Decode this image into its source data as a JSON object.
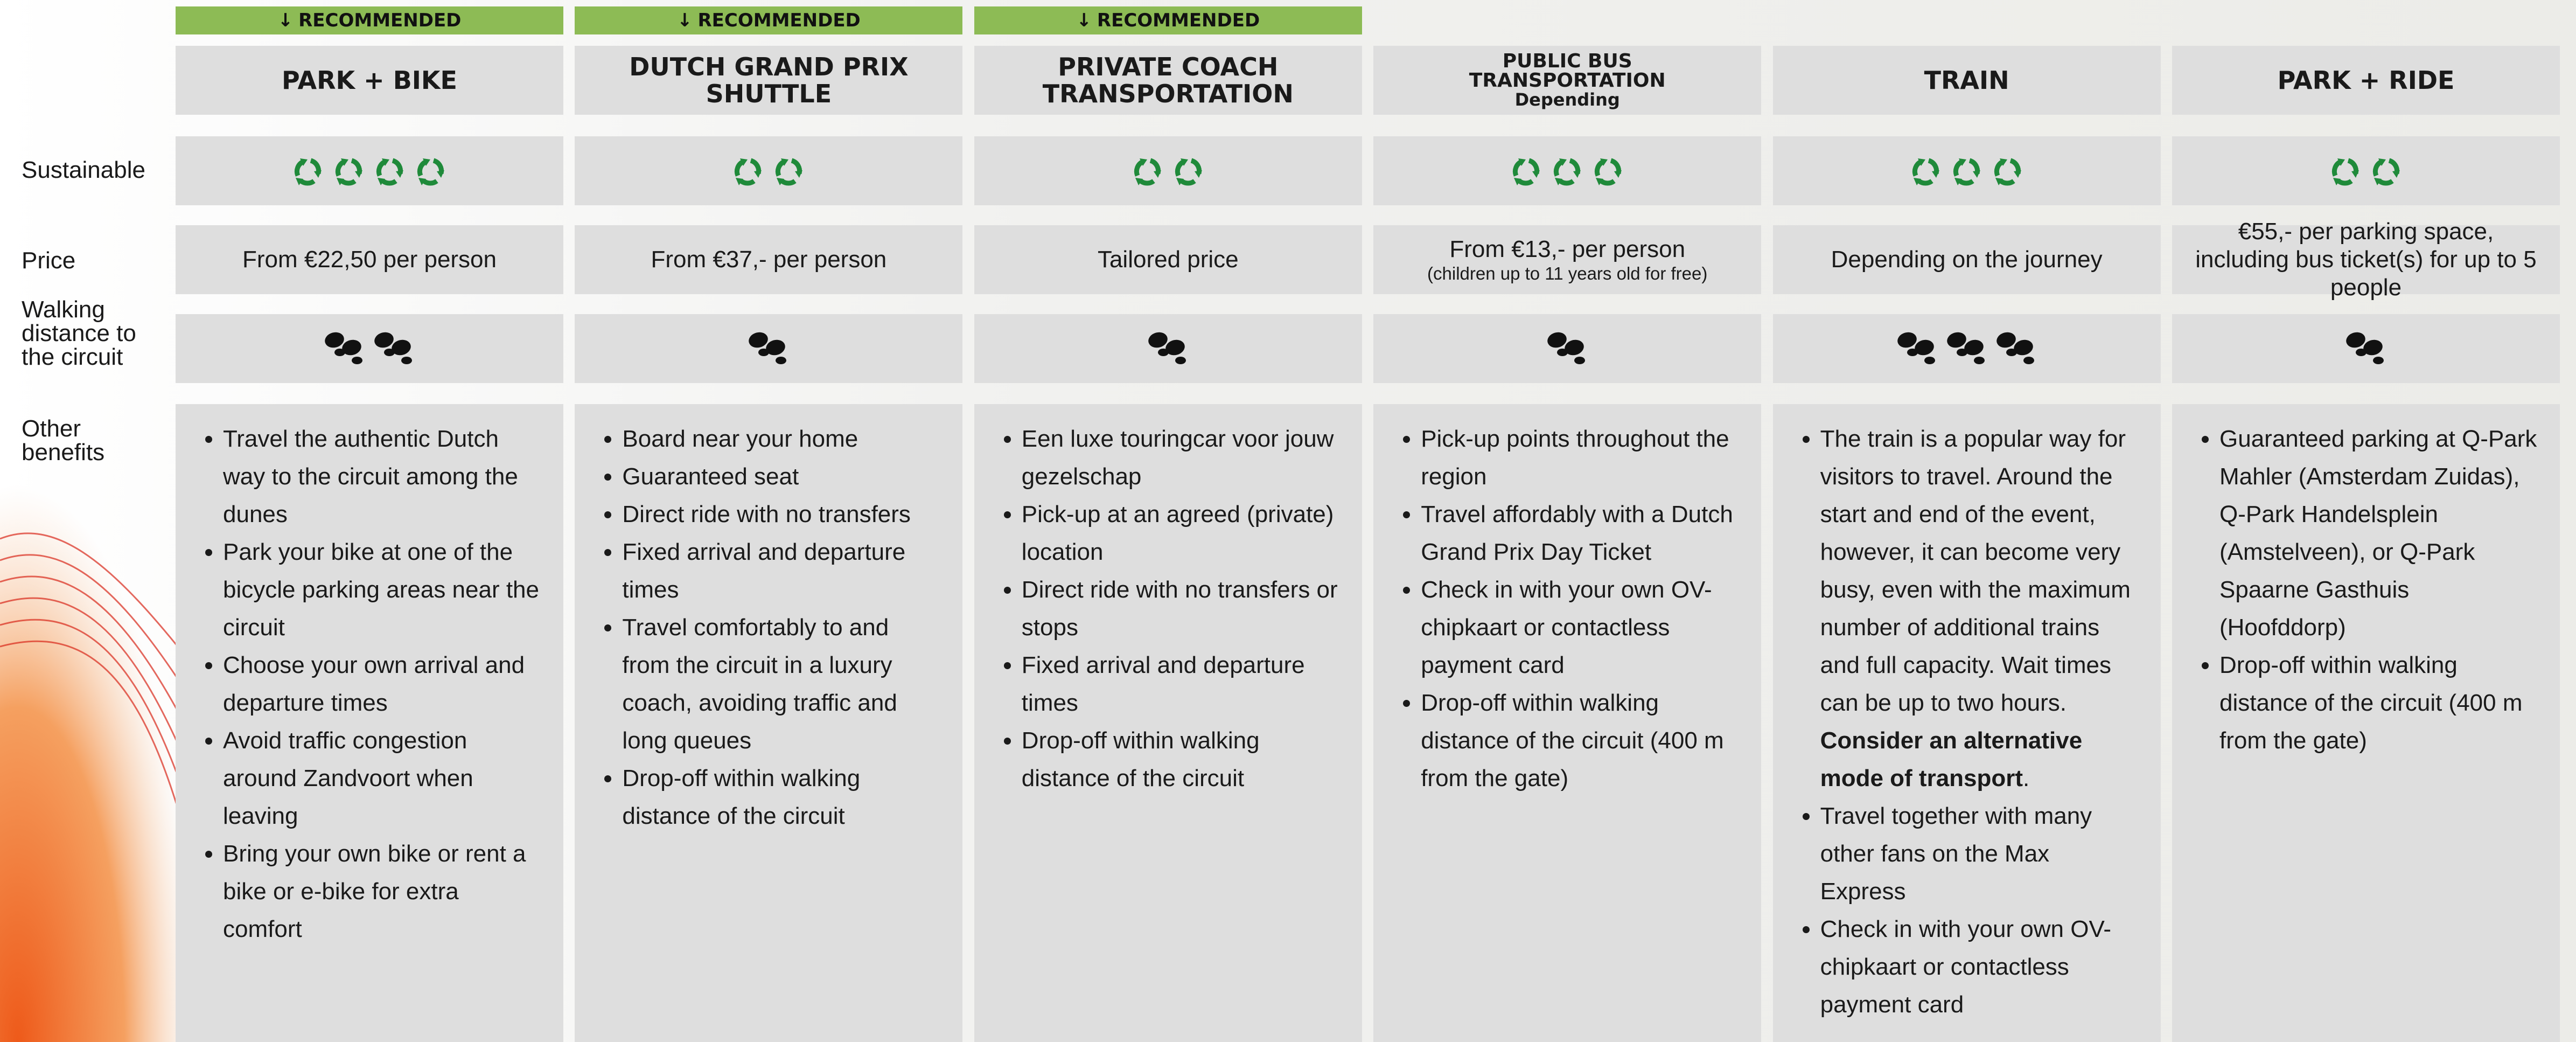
{
  "row_labels": {
    "sustainable": "Sustainable",
    "price": "Price",
    "walking": "Walking distance to the circuit",
    "benefits": "Other benefits"
  },
  "options": [
    {
      "badge": "RECOMMENDED",
      "title": "PARK + BIKE",
      "sustainability": 4,
      "price": "From €22,50 per person",
      "walking": 2,
      "benefits": [
        "Travel the authentic Dutch way to the circuit among the dunes",
        "Park your bike at one of the bicycle parking areas near the circuit",
        "Choose your own arrival and departure times",
        "Avoid traffic congestion around Zandvoort when leaving",
        "Bring your own bike or rent a bike or e-bike for extra comfort"
      ]
    },
    {
      "badge": "RECOMMENDED",
      "title": "DUTCH GRAND PRIX SHUTTLE",
      "sustainability": 2,
      "price": "From €37,- per person",
      "walking": 1,
      "benefits": [
        "Board near your home",
        "Guaranteed seat",
        "Direct ride with no transfers",
        "Fixed arrival and departure times",
        "Travel comfortably to and from the circuit in a luxury coach, avoiding traffic and long queues",
        "Drop-off within walking distance of the circuit"
      ]
    },
    {
      "badge": "RECOMMENDED",
      "title": "PRIVATE COACH TRANSPORTATION",
      "sustainability": 2,
      "price": "Tailored price",
      "walking": 1,
      "benefits": [
        "Een luxe touringcar voor jouw gezelschap",
        "Pick-up at an agreed (private) location",
        "Direct ride with no transfers or stops",
        "Fixed arrival and departure times",
        "Drop-off within walking distance of the circuit"
      ]
    },
    {
      "title": "PUBLIC BUS TRANSPORTATION",
      "title_note": "Depending",
      "sustainability": 3,
      "price": "From €13,- per person",
      "price_note": "(children up to 11 years old for free)",
      "walking": 1,
      "benefits": [
        "Pick-up points throughout the region",
        "Travel affordably with a Dutch Grand Prix Day Ticket",
        "Check in with your own OV-chipkaart or contactless payment card",
        "Drop-off within walking distance of the circuit (400 m from the gate)"
      ]
    },
    {
      "title": "TRAIN",
      "sustainability": 3,
      "price": "Depending on the journey",
      "walking": 3,
      "benefits": [
        {
          "text": "The train is a popular way for visitors to travel. Around the start and end of the event, however, it can become very busy, even with the maximum number of additional trains and full capacity. Wait times can be up to two hours.",
          "bold": "Consider an alternative mode of transport",
          "after": "."
        },
        "Travel together with many other fans on the Max Express",
        "Check in with your own OV-chipkaart or contactless payment card"
      ]
    },
    {
      "title": "PARK + RIDE",
      "sustainability": 2,
      "price": "€55,- per parking space, including bus ticket(s) for up to 5 people",
      "walking": 1,
      "benefits": [
        "Guaranteed parking at Q-Park Mahler (Amsterdam Zuidas), Q-Park Handelsplein (Amstelveen), or Q-Park Spaarne Gasthuis (Hoofddorp)",
        "Drop-off within walking distance of the circuit (400 m from the gate)"
      ]
    }
  ]
}
